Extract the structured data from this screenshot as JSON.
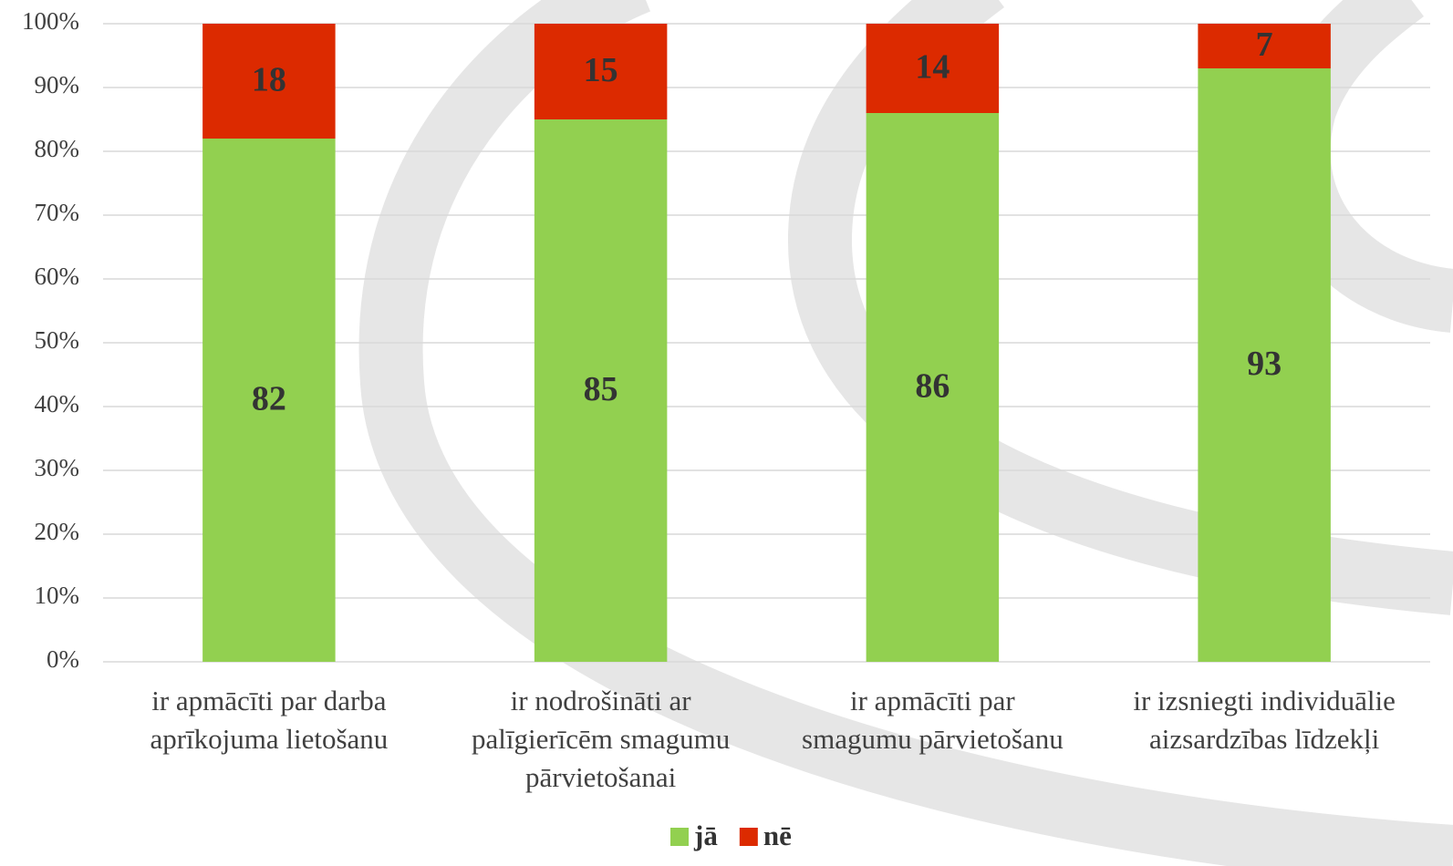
{
  "chart_data": {
    "type": "stacked_bar",
    "categories": [
      [
        "ir apmācīti par darba",
        "aprīkojuma lietošanu"
      ],
      [
        "ir nodrošināti ar",
        "palīgierīcēm smagumu",
        "pārvietošanai"
      ],
      [
        "ir apmācīti par",
        "smagumu pārvietošanu"
      ],
      [
        "ir izsniegti individuālie",
        "aizsardzības līdzekļi"
      ]
    ],
    "series": [
      {
        "name": "jā",
        "color": "#92d050",
        "values": [
          82,
          85,
          86,
          93
        ]
      },
      {
        "name": "nē",
        "color": "#dc2a00",
        "values": [
          18,
          15,
          14,
          7
        ]
      }
    ],
    "ylim": [
      0,
      100
    ],
    "yticks": [
      {
        "value": 0,
        "label": "0%"
      },
      {
        "value": 10,
        "label": "10%"
      },
      {
        "value": 20,
        "label": "20%"
      },
      {
        "value": 30,
        "label": "30%"
      },
      {
        "value": 40,
        "label": "40%"
      },
      {
        "value": 50,
        "label": "50%"
      },
      {
        "value": 60,
        "label": "60%"
      },
      {
        "value": 70,
        "label": "70%"
      },
      {
        "value": 80,
        "label": "80%"
      },
      {
        "value": 90,
        "label": "90%"
      },
      {
        "value": 100,
        "label": "100%"
      }
    ],
    "grid": true,
    "legend": "bottom"
  }
}
